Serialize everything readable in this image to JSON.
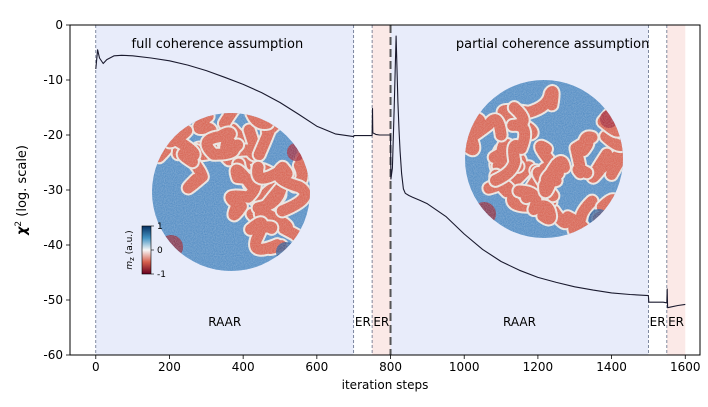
{
  "chart_data": {
    "type": "line",
    "xlabel": "iteration steps",
    "ylabel_main": "χ",
    "ylabel_sup": "2",
    "ylabel_rest": " (log. scale)",
    "xlim": [
      -70,
      1640
    ],
    "ylim": [
      -60,
      0
    ],
    "xticks": [
      0,
      200,
      400,
      600,
      800,
      1000,
      1200,
      1400,
      1600
    ],
    "yticks": [
      0,
      -10,
      -20,
      -30,
      -40,
      -50,
      -60
    ],
    "regions": [
      {
        "name": "RAAR",
        "start": 0,
        "end": 700,
        "color": "#e8ecfa",
        "label": "RAAR"
      },
      {
        "name": "ER",
        "start": 700,
        "end": 750,
        "color": "#ffffff",
        "label": "ER"
      },
      {
        "name": "ER",
        "start": 750,
        "end": 800,
        "color": "#fbe9e7",
        "label": "ER"
      },
      {
        "name": "RAAR",
        "start": 800,
        "end": 1500,
        "color": "#e8ecfa",
        "label": "RAAR"
      },
      {
        "name": "ER",
        "start": 1500,
        "end": 1550,
        "color": "#ffffff",
        "label": "ER"
      },
      {
        "name": "ER",
        "start": 1550,
        "end": 1600,
        "color": "#fbe9e7",
        "label": "ER"
      }
    ],
    "region_labels_y": -54,
    "section_titles": [
      {
        "text": "full coherence assumption",
        "x": 330,
        "y": -2
      },
      {
        "text": "partial coherence assumption",
        "x": 1240,
        "y": -2
      }
    ],
    "vlines_dashed_thin": [
      0,
      700,
      750,
      1500,
      1550
    ],
    "vline_dashed_thick": 800,
    "series": [
      {
        "name": "chi2",
        "x": [
          0,
          5,
          10,
          20,
          30,
          50,
          70,
          100,
          150,
          200,
          250,
          300,
          350,
          400,
          450,
          500,
          550,
          600,
          650,
          700,
          701,
          740,
          749,
          750,
          751,
          752,
          760,
          770,
          790,
          800,
          801,
          805,
          810,
          815,
          820,
          823,
          826,
          830,
          835,
          840,
          850,
          860,
          880,
          900,
          950,
          1000,
          1050,
          1100,
          1150,
          1200,
          1250,
          1300,
          1350,
          1400,
          1450,
          1500,
          1501,
          1540,
          1549,
          1550,
          1551,
          1552,
          1560,
          1580,
          1600
        ],
        "y": [
          -8,
          -4.5,
          -6,
          -7,
          -6.3,
          -5.6,
          -5.5,
          -5.6,
          -6,
          -6.5,
          -7.3,
          -8.3,
          -9.5,
          -10.8,
          -12.3,
          -14.1,
          -16.2,
          -18.4,
          -19.8,
          -20.3,
          -20.1,
          -20.1,
          -20.1,
          -20.1,
          -15.2,
          -19.6,
          -19.9,
          -20,
          -20,
          -20,
          -28,
          -26,
          -15,
          -2,
          -14,
          -19,
          -23,
          -27,
          -29.8,
          -30.6,
          -31,
          -31.3,
          -31.9,
          -32.5,
          -34.8,
          -38,
          -40.8,
          -43,
          -44.6,
          -45.9,
          -46.8,
          -47.6,
          -48.2,
          -48.7,
          -49,
          -49.2,
          -50.4,
          -50.4,
          -50.5,
          -50.5,
          -48,
          -51.4,
          -51.3,
          -51,
          -50.8
        ]
      }
    ],
    "inset_colorbar": {
      "label": "m",
      "label_sub": "z",
      "label_unit": " (a.u.)",
      "ticks": [
        "1",
        "0",
        "-1"
      ]
    },
    "insets": [
      {
        "name": "full-coherence-inset"
      },
      {
        "name": "partial-coherence-inset"
      }
    ]
  }
}
